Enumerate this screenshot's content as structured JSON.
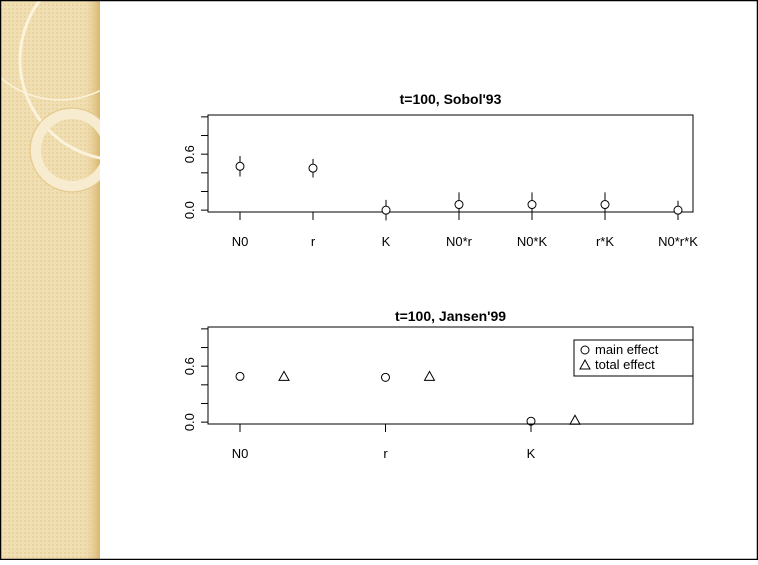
{
  "chart_data": [
    {
      "type": "errorbar",
      "title": "t=100, Sobol'93",
      "categories": [
        "N0",
        "r",
        "K",
        "N0*r",
        "N0*K",
        "r*K",
        "N0*r*K"
      ],
      "values": [
        0.47,
        0.45,
        0.0,
        0.06,
        0.06,
        0.06,
        0.0
      ],
      "errors": [
        0.11,
        0.1,
        0.11,
        0.13,
        0.13,
        0.13,
        0.1
      ],
      "color": "#000000",
      "ylim": [
        -0.02,
        1.02
      ],
      "yticks": [
        {
          "value": 0,
          "label": "0.0"
        },
        {
          "value": 0.2,
          "label": null
        },
        {
          "value": 0.4,
          "label": null
        },
        0.6,
        {
          "value": 0.8,
          "label": null
        },
        {
          "value": 1.0,
          "label": null
        }
      ]
    },
    {
      "type": "dot",
      "title": "t=100, Jansen'99",
      "categories": [
        "N0",
        "r",
        "K"
      ],
      "series": [
        {
          "name": "main effect",
          "marker": "circle",
          "color": "#000000",
          "values": [
            0.49,
            0.48,
            0.01
          ]
        },
        {
          "name": "total effect",
          "marker": "triangle",
          "color": "#000000",
          "values": [
            0.49,
            0.49,
            0.02
          ]
        }
      ],
      "legend": "top-right",
      "ylim": [
        -0.02,
        1.02
      ],
      "yticks": [
        {
          "value": 0,
          "label": "0.0"
        },
        {
          "value": 0.2,
          "label": null
        },
        {
          "value": 0.4,
          "label": null
        },
        0.6,
        {
          "value": 0.8,
          "label": null
        },
        {
          "value": 1.0,
          "label": null
        }
      ]
    }
  ]
}
